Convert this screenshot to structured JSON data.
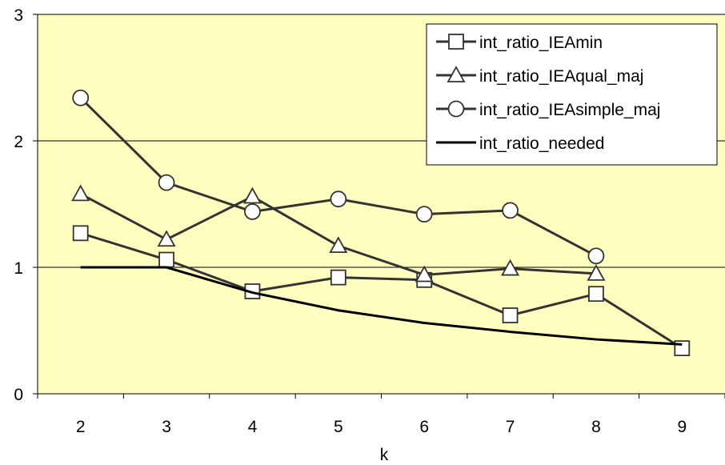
{
  "chart_data": {
    "type": "line",
    "title": "",
    "xlabel": "k",
    "ylabel": "",
    "x": [
      2,
      3,
      4,
      5,
      6,
      7,
      8,
      9
    ],
    "xlim": [
      1.5,
      9.5
    ],
    "ylim": [
      0,
      3
    ],
    "yticks": [
      0,
      1,
      2,
      3
    ],
    "grid": "horizontal",
    "legend_position": "top-right",
    "plot_background": "#ffffc0",
    "series": [
      {
        "name": "int_ratio_IEAmin",
        "marker": "square",
        "color": "#333333",
        "points": [
          [
            2,
            1.27
          ],
          [
            3,
            1.06
          ],
          [
            4,
            0.81
          ],
          [
            5,
            0.92
          ],
          [
            6,
            0.9
          ],
          [
            7,
            0.62
          ],
          [
            8,
            0.79
          ],
          [
            9,
            0.36
          ]
        ]
      },
      {
        "name": "int_ratio_IEAqual_maj",
        "marker": "triangle",
        "color": "#333333",
        "points": [
          [
            2,
            1.58
          ],
          [
            3,
            1.22
          ],
          [
            4,
            1.56
          ],
          [
            5,
            1.17
          ],
          [
            6,
            0.94
          ],
          [
            7,
            0.99
          ],
          [
            8,
            0.95
          ]
        ]
      },
      {
        "name": "int_ratio_IEAsimple_maj",
        "marker": "circle",
        "color": "#333333",
        "points": [
          [
            2,
            2.34
          ],
          [
            3,
            1.67
          ],
          [
            4,
            1.44
          ],
          [
            5,
            1.54
          ],
          [
            6,
            1.42
          ],
          [
            7,
            1.45
          ],
          [
            8,
            1.09
          ]
        ]
      },
      {
        "name": "int_ratio_needed",
        "marker": "none",
        "color": "#000000",
        "points": [
          [
            2,
            1.0
          ],
          [
            3,
            1.0
          ],
          [
            4,
            0.8
          ],
          [
            5,
            0.66
          ],
          [
            6,
            0.56
          ],
          [
            7,
            0.49
          ],
          [
            8,
            0.43
          ],
          [
            9,
            0.39
          ]
        ]
      }
    ]
  }
}
